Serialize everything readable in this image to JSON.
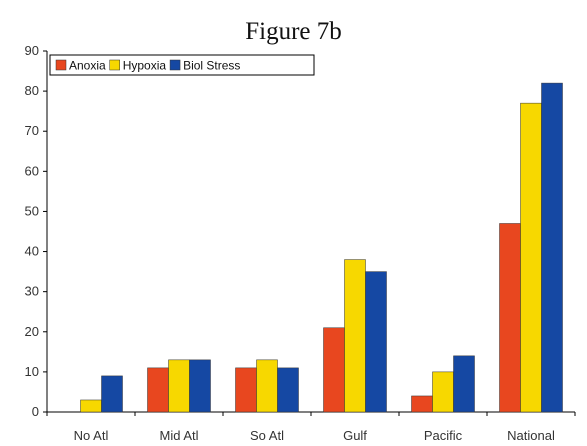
{
  "chart_data": {
    "type": "bar",
    "title": "Figure 7b",
    "xlabel": "",
    "ylabel": "",
    "categories": [
      "No Atl",
      "Mid Atl",
      "So Atl",
      "Gulf",
      "Pacific",
      "National"
    ],
    "series": [
      {
        "name": "Anoxia",
        "color": "#e8471f",
        "values": [
          0,
          11,
          11,
          21,
          4,
          47
        ]
      },
      {
        "name": "Hypoxia",
        "color": "#f7d800",
        "values": [
          3,
          13,
          13,
          38,
          10,
          77
        ]
      },
      {
        "name": "Biol Stress",
        "color": "#1548a3",
        "values": [
          9,
          13,
          11,
          35,
          14,
          82
        ]
      }
    ],
    "ylim": [
      0,
      90
    ],
    "yticks": [
      "0",
      "10",
      "20",
      "30",
      "40",
      "50",
      "60",
      "70",
      "80",
      "90"
    ],
    "grid": false,
    "legend_position": "top-left"
  }
}
